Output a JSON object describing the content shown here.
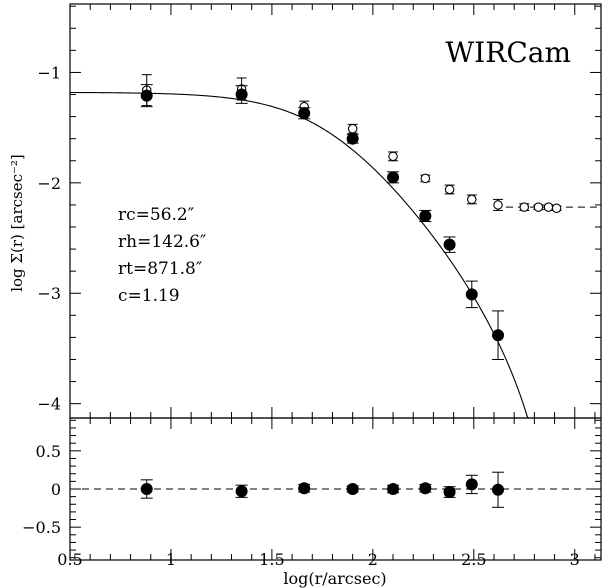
{
  "chart_data": [
    {
      "type": "scatter",
      "panel": "main",
      "title": "WIRCam",
      "xlabel": "log(r/arcsec)",
      "ylabel": "log Σ(r) [arcsec⁻²]",
      "xlim": [
        0.5,
        3.13
      ],
      "ylim": [
        -4.13,
        -0.38
      ],
      "x_ticks": [
        0.5,
        1,
        1.5,
        2,
        2.5,
        3
      ],
      "y_ticks": [
        -1,
        -2,
        -3,
        -4
      ],
      "y_tick_labels": [
        "−1",
        "−2",
        "−3",
        "−4"
      ],
      "annotations": [
        "rc=56.2″",
        "rh=142.6″",
        "rt=871.8″",
        "c=1.19"
      ],
      "fit": {
        "type": "king_profile",
        "log_central_density": -1.18,
        "rc_arcsec": 56.2,
        "rt_arcsec": 871.8
      },
      "series": [
        {
          "marker": "filled",
          "x": [
            0.88,
            1.35,
            1.66,
            1.9,
            2.1,
            2.26,
            2.38,
            2.49,
            2.62
          ],
          "y": [
            -1.21,
            -1.2,
            -1.37,
            -1.6,
            -1.95,
            -2.3,
            -2.56,
            -3.01,
            -3.38
          ],
          "err": [
            0.1,
            0.08,
            0.05,
            0.04,
            0.05,
            0.05,
            0.07,
            0.12,
            0.22
          ]
        },
        {
          "marker": "open",
          "x": [
            0.88,
            1.35,
            1.66,
            1.9,
            2.1,
            2.26,
            2.38,
            2.49,
            2.62,
            2.75,
            2.82,
            2.87,
            2.91
          ],
          "y": [
            -1.16,
            -1.15,
            -1.31,
            -1.51,
            -1.76,
            -1.96,
            -2.06,
            -2.15,
            -2.2,
            -2.22,
            -2.22,
            -2.22,
            -2.23
          ],
          "err": [
            0.14,
            0.1,
            0.05,
            0.04,
            0.04,
            0.03,
            0.04,
            0.04,
            0.05,
            0.03,
            0.02,
            0.02,
            0.02
          ]
        }
      ],
      "background_level": -2.22
    },
    {
      "type": "scatter",
      "panel": "residuals",
      "xlabel": "log(r/arcsec)",
      "ylabel": "",
      "xlim": [
        0.5,
        3.13
      ],
      "ylim": [
        -0.93,
        0.93
      ],
      "x_ticks": [
        0.5,
        1,
        1.5,
        2,
        2.5,
        3
      ],
      "x_tick_labels": [
        "0.5",
        "1",
        "1.5",
        "2",
        "2.5",
        "3"
      ],
      "y_ticks": [
        0.5,
        0,
        -0.5
      ],
      "y_tick_labels": [
        "0.5",
        "0",
        "−0.5"
      ],
      "zero_line": 0,
      "series": [
        {
          "marker": "filled",
          "x": [
            0.88,
            1.35,
            1.66,
            1.9,
            2.1,
            2.26,
            2.38,
            2.49,
            2.62
          ],
          "y": [
            0.0,
            -0.03,
            0.01,
            0.0,
            0.0,
            0.01,
            -0.04,
            0.06,
            -0.01
          ],
          "err": [
            0.12,
            0.08,
            0.05,
            0.04,
            0.05,
            0.05,
            0.07,
            0.12,
            0.23
          ]
        }
      ]
    }
  ]
}
